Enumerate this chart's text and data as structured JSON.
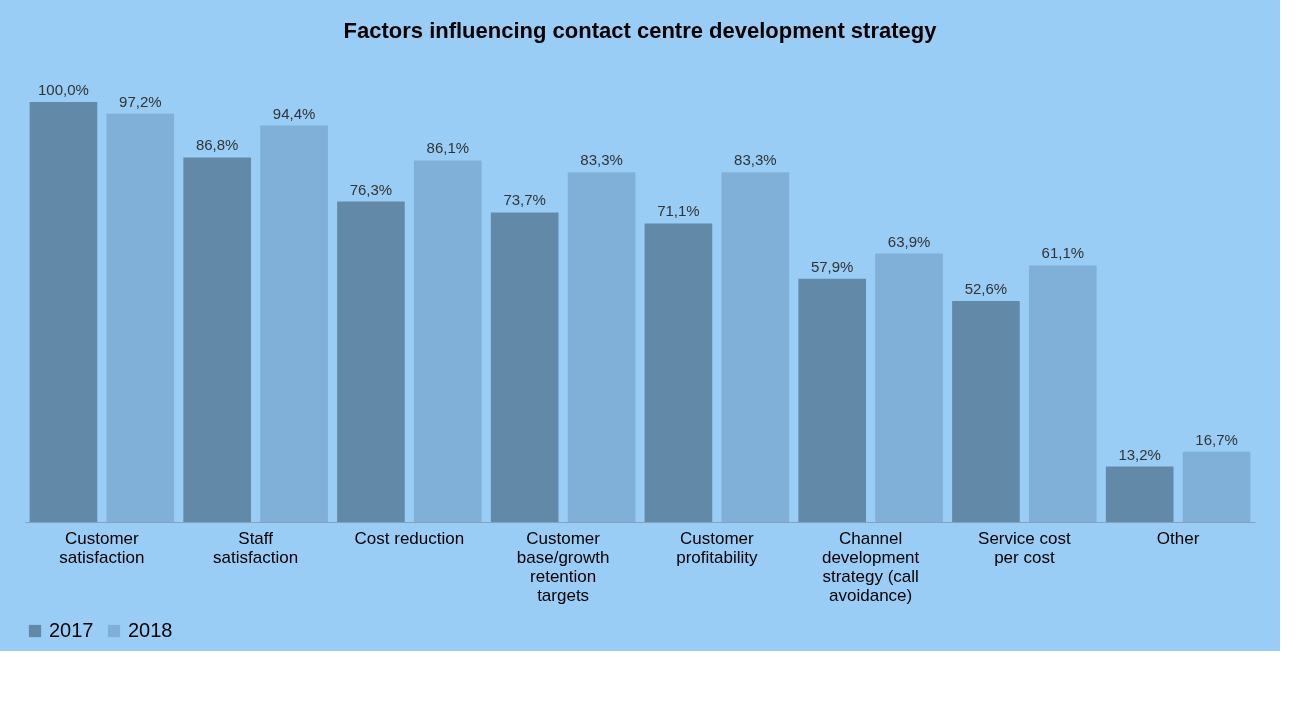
{
  "chart_data": {
    "type": "bar",
    "title": "Factors influencing contact centre development strategy",
    "categories": [
      "Customer\nsatisfaction",
      "Staff\nsatisfaction",
      "Cost reduction",
      "Customer\nbase/growth\nretention\ntargets",
      "Customer\nprofitability",
      "Channel\ndevelopment\nstrategy (call\navoidance)",
      "Service cost\nper cost",
      "Other"
    ],
    "series": [
      {
        "name": "2017",
        "color": "#6389a8",
        "values": [
          100.0,
          86.8,
          76.3,
          73.7,
          71.1,
          57.9,
          52.6,
          13.2
        ],
        "value_labels": [
          "100,0%",
          "86,8%",
          "76,3%",
          "73,7%",
          "71,1%",
          "57,9%",
          "52,6%",
          "13,2%"
        ]
      },
      {
        "name": "2018",
        "color": "#80b0d8",
        "values": [
          97.2,
          94.4,
          86.1,
          83.3,
          83.3,
          63.9,
          61.1,
          16.7
        ],
        "value_labels": [
          "97,2%",
          "94,4%",
          "86,1%",
          "83,3%",
          "83,3%",
          "63,9%",
          "61,1%",
          "16,7%"
        ]
      }
    ],
    "grid": false,
    "legend": "bottom"
  }
}
